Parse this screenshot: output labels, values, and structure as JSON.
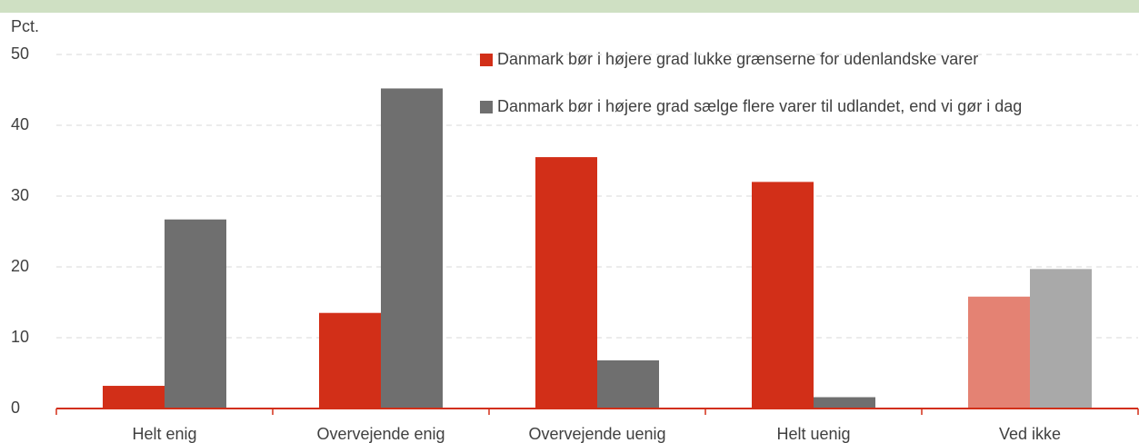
{
  "chart_data": {
    "type": "bar",
    "y_axis_label": "Pct.",
    "categories": [
      "Helt enig",
      "Overvejende enig",
      "Overvejende uenig",
      "Helt uenig",
      "Ved ikke"
    ],
    "series": [
      {
        "name": "Danmark bør i højere grad lukke grænserne for udenlandske varer",
        "color": "#d22f18",
        "colors": [
          "#d22f18",
          "#d22f18",
          "#d22f18",
          "#d22f18",
          "#e48273"
        ],
        "values": [
          3.2,
          13.5,
          35.5,
          32.0,
          15.8
        ]
      },
      {
        "name": "Danmark bør i højere grad sælge flere varer til udlandet, end vi gør i dag",
        "color": "#6f6f6f",
        "colors": [
          "#6f6f6f",
          "#6f6f6f",
          "#6f6f6f",
          "#6f6f6f",
          "#a9a9a9"
        ],
        "values": [
          26.7,
          45.2,
          6.8,
          1.6,
          19.7
        ]
      }
    ],
    "ylim": [
      0,
      50
    ],
    "yticks": [
      0,
      10,
      20,
      30,
      40,
      50
    ],
    "grid": true,
    "axis_color": "#d22f18"
  }
}
